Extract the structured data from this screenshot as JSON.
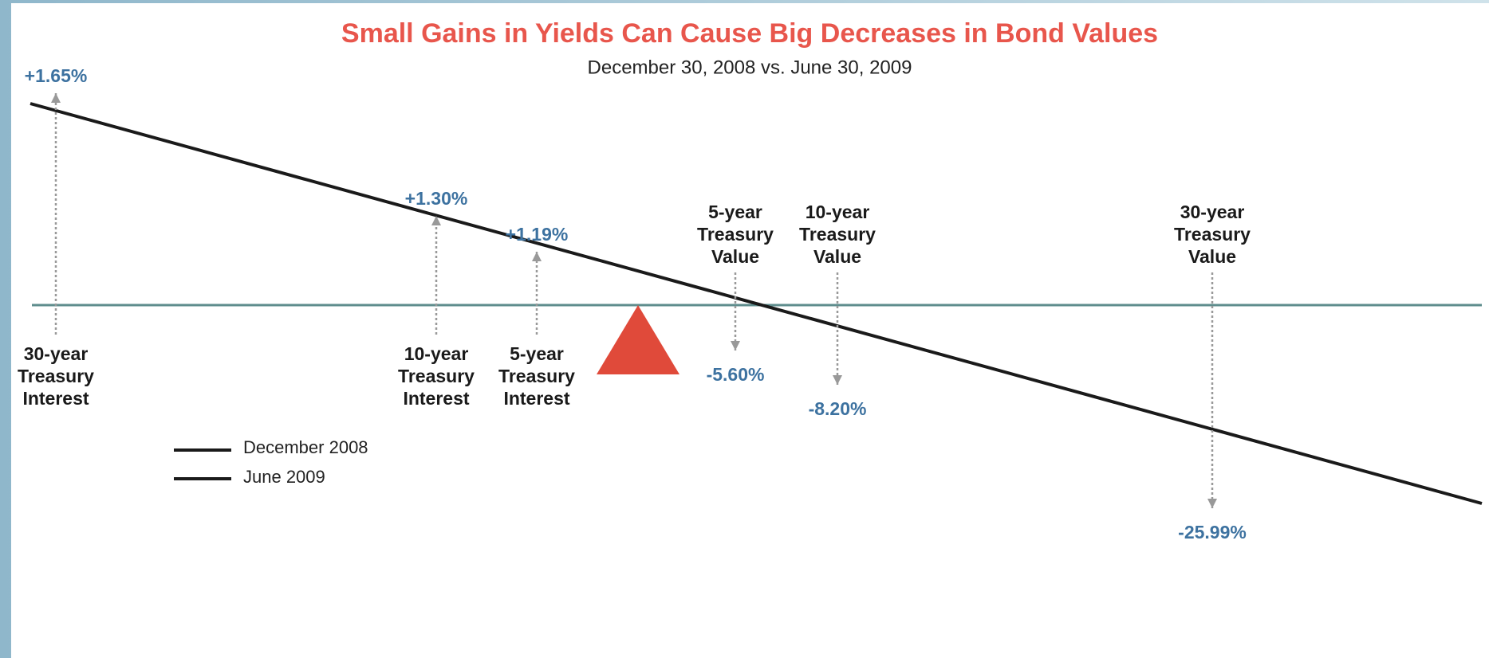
{
  "title": "Small Gains in Yields Can Cause Big Decreases in Bond Values",
  "subtitle": "December 30, 2008 vs. June 30, 2009",
  "items": [
    {
      "label": [
        "30-year",
        "Treasury",
        "Interest"
      ],
      "change": "+1.65%"
    },
    {
      "label": [
        "10-year",
        "Treasury",
        "Interest"
      ],
      "change": "+1.30%"
    },
    {
      "label": [
        "5-year",
        "Treasury",
        "Interest"
      ],
      "change": "+1.19%"
    },
    {
      "label": [
        "5-year",
        "Treasury",
        "Value"
      ],
      "change": "-5.60%"
    },
    {
      "label": [
        "10-year",
        "Treasury",
        "Value"
      ],
      "change": "-8.20%"
    },
    {
      "label": [
        "30-year",
        "Treasury",
        "Value"
      ],
      "change": "-25.99%"
    }
  ],
  "legend": [
    "December 2008",
    "June 2009"
  ]
}
